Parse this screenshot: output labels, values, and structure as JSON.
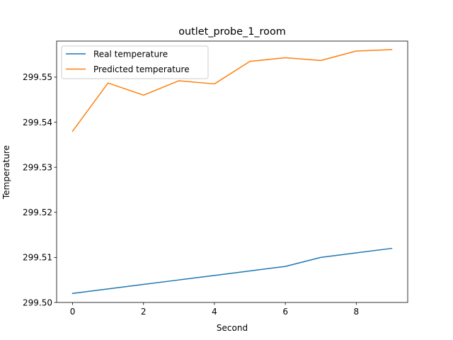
{
  "chart_data": {
    "type": "line",
    "title": "outlet_probe_1_room",
    "xlabel": "Second",
    "ylabel": "Temperature",
    "xlim": [
      -0.45,
      9.45
    ],
    "ylim": [
      299.5,
      299.558
    ],
    "x_ticks": [
      0,
      2,
      4,
      6,
      8
    ],
    "x_tick_labels": [
      "0",
      "2",
      "4",
      "6",
      "8"
    ],
    "y_ticks": [
      299.5,
      299.51,
      299.52,
      299.53,
      299.54,
      299.55
    ],
    "y_tick_labels": [
      "299.50",
      "299.51",
      "299.52",
      "299.53",
      "299.54",
      "299.55"
    ],
    "grid": false,
    "legend_position": "upper-left",
    "x": [
      0,
      1,
      2,
      3,
      4,
      5,
      6,
      7,
      8,
      9
    ],
    "series": [
      {
        "name": "Real temperature",
        "color": "#1f77b4",
        "values": [
          299.502,
          299.503,
          299.504,
          299.505,
          299.506,
          299.507,
          299.508,
          299.51,
          299.511,
          299.512
        ]
      },
      {
        "name": "Predicted temperature",
        "color": "#ff7f0e",
        "values": [
          299.538,
          299.5487,
          299.546,
          299.5492,
          299.5485,
          299.5535,
          299.5543,
          299.5537,
          299.5558,
          299.5561
        ]
      }
    ]
  }
}
